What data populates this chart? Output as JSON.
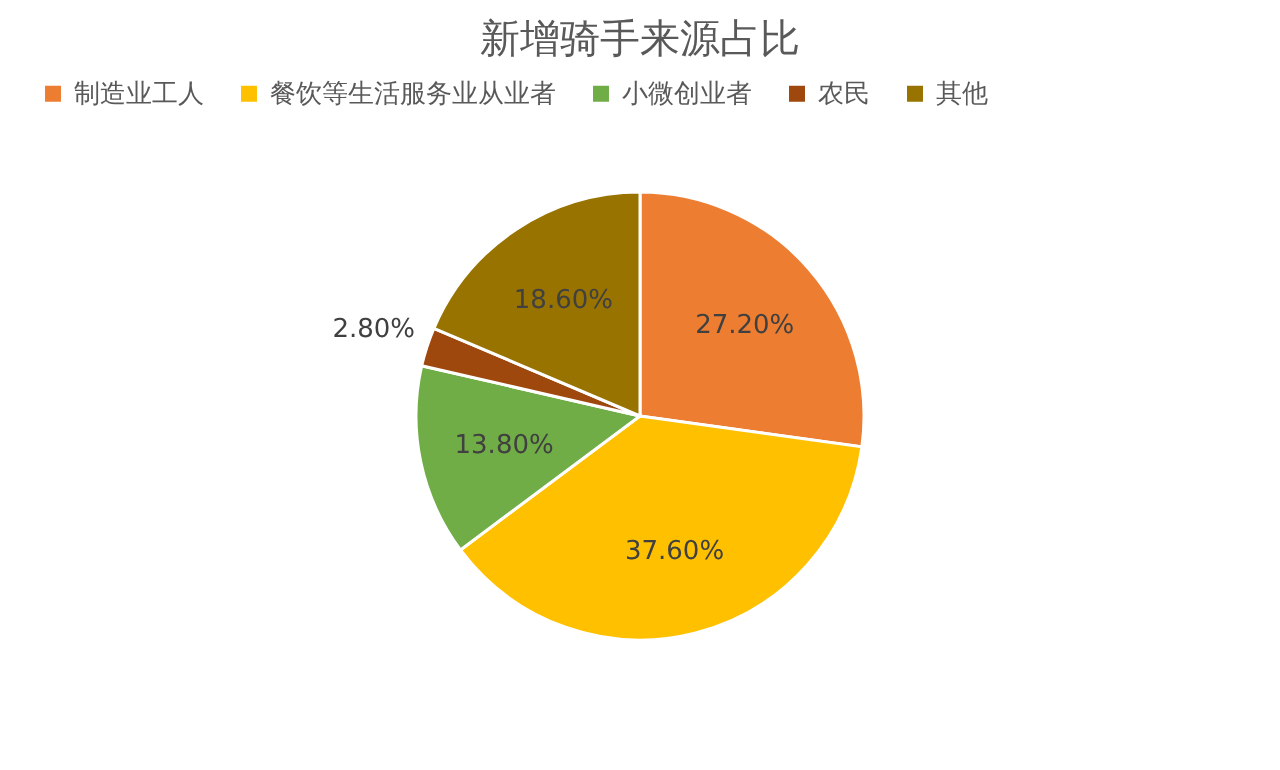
{
  "chart_data": {
    "type": "pie",
    "title": "新增骑手来源占比",
    "categories": [
      "制造业工人",
      "餐饮等生活服务业从业者",
      "小微创业者",
      "农民",
      "其他"
    ],
    "values": [
      27.2,
      37.6,
      13.8,
      2.8,
      18.6
    ],
    "colors": [
      "#ed7d31",
      "#ffc000",
      "#70ad47",
      "#9e480e",
      "#997300"
    ],
    "value_labels": [
      "27.20%",
      "37.60%",
      "13.80%",
      "2.80%",
      "18.60%"
    ],
    "legend": "top"
  }
}
